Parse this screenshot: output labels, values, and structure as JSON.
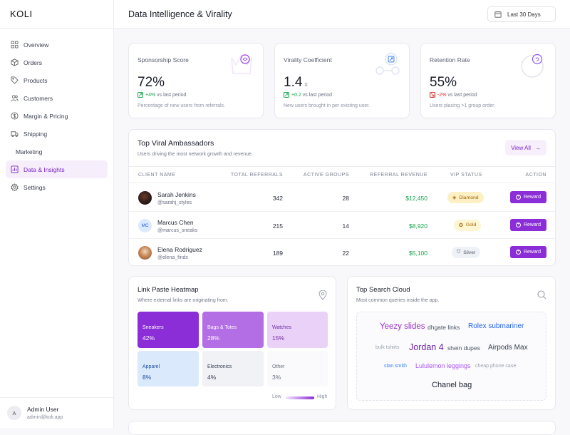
{
  "brand": "KOLI",
  "sidebar": {
    "items": [
      {
        "label": "Overview",
        "icon": "grid-icon"
      },
      {
        "label": "Orders",
        "icon": "box-icon"
      },
      {
        "label": "Products",
        "icon": "tag-icon"
      },
      {
        "label": "Customers",
        "icon": "users-icon"
      },
      {
        "label": "Margin & Pricing",
        "icon": "dollar-icon"
      },
      {
        "label": "Shipping",
        "icon": "truck-icon"
      },
      {
        "label": "Marketing",
        "icon": ""
      },
      {
        "label": "Data & Insights",
        "icon": "chart-icon"
      },
      {
        "label": "Settings",
        "icon": "gear-icon"
      }
    ],
    "active": "Data & Insights"
  },
  "user": {
    "initial": "A",
    "name": "Admin User",
    "email": "admin@koli.app"
  },
  "header": {
    "title": "Data Intelligence & Virality",
    "date_range": "Last 30 Days"
  },
  "kpis": [
    {
      "title": "Sponsorship Score",
      "value": "72%",
      "unit": "",
      "trend": "+4%",
      "trend_suffix": "vs last period",
      "trend_dir": "up",
      "desc": "Percentage of new users from referrals."
    },
    {
      "title": "Virality Coefficient",
      "value": "1.4",
      "unit": "x",
      "trend": "+0.2",
      "trend_suffix": "vs last period",
      "trend_dir": "up",
      "desc": "New users brought in per existing user."
    },
    {
      "title": "Retention Rate",
      "value": "55%",
      "unit": "",
      "trend": "-2%",
      "trend_suffix": "vs last period",
      "trend_dir": "down",
      "desc": "Users placing >1 group order."
    }
  ],
  "ambassadors": {
    "title": "Top Viral Ambassadors",
    "subtitle": "Users driving the most network growth and revenue.",
    "view_all": "View All",
    "columns": [
      "CLIENT NAME",
      "TOTAL REFERRALS",
      "ACTIVE GROUPS",
      "REFERRAL REVENUE",
      "VIP STATUS",
      "ACTION"
    ],
    "rows": [
      {
        "name": "Sarah Jenkins",
        "handle": "@sarahj_styles",
        "avatar": "",
        "referrals": "342",
        "groups": "28",
        "revenue": "$12,450",
        "vip": "Diamond",
        "action": "Reward"
      },
      {
        "name": "Marcus Chen",
        "handle": "@marcus_sneaks",
        "avatar": "MC",
        "referrals": "215",
        "groups": "14",
        "revenue": "$8,920",
        "vip": "Gold",
        "action": "Reward"
      },
      {
        "name": "Elena Rodriguez",
        "handle": "@elena_finds",
        "avatar": "",
        "referrals": "189",
        "groups": "22",
        "revenue": "$5,100",
        "vip": "Silver",
        "action": "Reward"
      }
    ]
  },
  "heatmap": {
    "title": "Link Paste Heatmap",
    "subtitle": "Where external links are originating from.",
    "cells": [
      {
        "label": "Sneakers",
        "value": "42%"
      },
      {
        "label": "Bags & Totes",
        "value": "28%"
      },
      {
        "label": "Watches",
        "value": "15%"
      },
      {
        "label": "Apparel",
        "value": "8%"
      },
      {
        "label": "Electronics",
        "value": "4%"
      },
      {
        "label": "Other",
        "value": "3%"
      }
    ],
    "legend_low": "Low",
    "legend_high": "High"
  },
  "search_cloud": {
    "title": "Top Search Cloud",
    "subtitle": "Most common queries inside the app.",
    "words": [
      "Yeezy slides",
      "dhgate links",
      "Rolex submariner",
      "bulk tshirts",
      "Jordan 4",
      "shein dupes",
      "Airpods Max",
      "stan smith",
      "Lululemon leggings",
      "cheap phone case",
      "Chanel bag"
    ]
  }
}
